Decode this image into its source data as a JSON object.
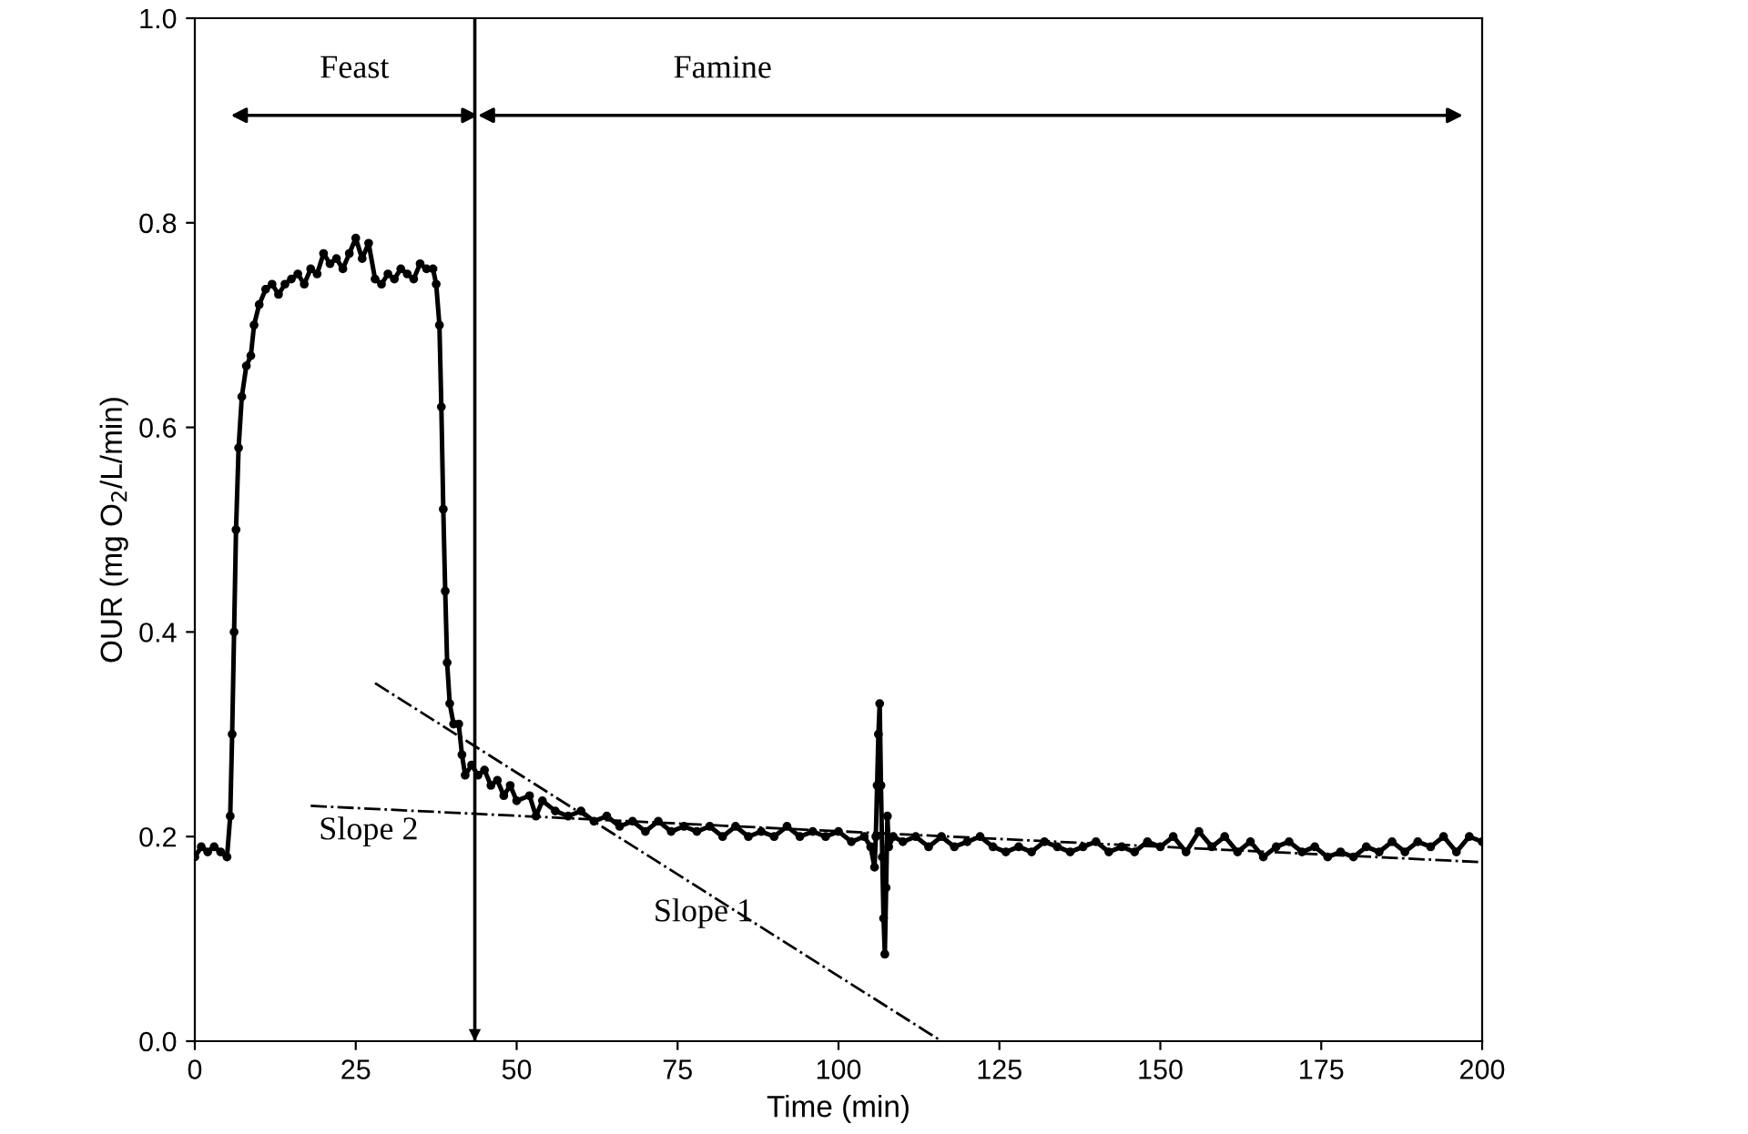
{
  "chart_data": {
    "type": "line",
    "xlabel": "Time (min)",
    "ylabel": "OUR (mg O$_{2}$/L/min)",
    "xlim": [
      0,
      200
    ],
    "xticks": [
      0,
      25,
      50,
      75,
      100,
      125,
      150,
      175,
      200
    ],
    "ylim": [
      0,
      1
    ],
    "yticks": [
      {
        "value": 0,
        "label": "0.0"
      },
      0.2,
      0.4,
      0.6,
      0.8,
      {
        "value": 1,
        "label": "1.0"
      }
    ],
    "grid": false,
    "marker": "circle",
    "series": [
      {
        "color": "#000000",
        "x": [
          0,
          1,
          2,
          3,
          4,
          5,
          5.5,
          5.8,
          6.1,
          6.4,
          6.8,
          7.3,
          8,
          8.7,
          9.2,
          10,
          11,
          12,
          13,
          14,
          15,
          16,
          17,
          18,
          19,
          20,
          21,
          22,
          23,
          24,
          25,
          26,
          27,
          28,
          29,
          30,
          31,
          32,
          33,
          34,
          35,
          36,
          37,
          37.5,
          38,
          38.3,
          38.6,
          38.9,
          39.2,
          39.6,
          40.2,
          41,
          41.5,
          42,
          43,
          44,
          45,
          46,
          47,
          48,
          49,
          50,
          52,
          53,
          54,
          56,
          58,
          60,
          62,
          64,
          66,
          68,
          70,
          72,
          74,
          76,
          78,
          80,
          82,
          84,
          86,
          88,
          90,
          92,
          94,
          96,
          98,
          100,
          102,
          104,
          105,
          105.6,
          105.8,
          106,
          106.2,
          106.4,
          106.6,
          106.8,
          107,
          107.2,
          107.4,
          107.6,
          107.8,
          108.5,
          110,
          112,
          114,
          116,
          118,
          120,
          122,
          124,
          126,
          128,
          130,
          132,
          134,
          136,
          138,
          140,
          142,
          144,
          146,
          148,
          150,
          152,
          154,
          156,
          158,
          160,
          162,
          164,
          166,
          168,
          170,
          172,
          174,
          176,
          178,
          180,
          182,
          184,
          186,
          188,
          190,
          192,
          194,
          196,
          198,
          200
        ],
        "values": [
          0.18,
          0.19,
          0.185,
          0.19,
          0.185,
          0.18,
          0.22,
          0.3,
          0.4,
          0.5,
          0.58,
          0.63,
          0.66,
          0.67,
          0.7,
          0.72,
          0.735,
          0.74,
          0.73,
          0.74,
          0.745,
          0.75,
          0.74,
          0.755,
          0.75,
          0.77,
          0.76,
          0.765,
          0.755,
          0.77,
          0.785,
          0.765,
          0.78,
          0.745,
          0.74,
          0.75,
          0.745,
          0.755,
          0.75,
          0.745,
          0.76,
          0.755,
          0.755,
          0.74,
          0.7,
          0.62,
          0.52,
          0.44,
          0.37,
          0.33,
          0.31,
          0.31,
          0.28,
          0.26,
          0.27,
          0.26,
          0.265,
          0.25,
          0.255,
          0.24,
          0.25,
          0.235,
          0.24,
          0.22,
          0.235,
          0.225,
          0.22,
          0.225,
          0.215,
          0.22,
          0.21,
          0.215,
          0.205,
          0.215,
          0.205,
          0.21,
          0.205,
          0.21,
          0.2,
          0.21,
          0.2,
          0.205,
          0.2,
          0.21,
          0.2,
          0.205,
          0.2,
          0.205,
          0.195,
          0.2,
          0.19,
          0.17,
          0.2,
          0.25,
          0.3,
          0.33,
          0.25,
          0.18,
          0.12,
          0.085,
          0.15,
          0.22,
          0.19,
          0.2,
          0.195,
          0.2,
          0.19,
          0.2,
          0.19,
          0.195,
          0.2,
          0.19,
          0.185,
          0.19,
          0.185,
          0.195,
          0.19,
          0.185,
          0.19,
          0.195,
          0.185,
          0.19,
          0.185,
          0.195,
          0.19,
          0.2,
          0.185,
          0.205,
          0.19,
          0.2,
          0.185,
          0.195,
          0.18,
          0.19,
          0.195,
          0.185,
          0.19,
          0.18,
          0.185,
          0.18,
          0.19,
          0.185,
          0.195,
          0.185,
          0.195,
          0.19,
          0.2,
          0.185,
          0.2,
          0.195
        ]
      },
      {
        "type": "line",
        "marker": "none",
        "line_style": "dashdot",
        "color": "#000000",
        "x": [
          28,
          116
        ],
        "values": [
          0.35,
          0
        ]
      },
      {
        "type": "line",
        "marker": "none",
        "line_style": "dashdot",
        "color": "#000000",
        "x": [
          18,
          200
        ],
        "values": [
          0.23,
          0.175
        ]
      }
    ],
    "ref_lines": [
      {
        "axis": "x",
        "value": 43.5
      }
    ],
    "annotations": [
      "Feast",
      "Famine",
      "Slope 2",
      "Slope 1"
    ]
  }
}
